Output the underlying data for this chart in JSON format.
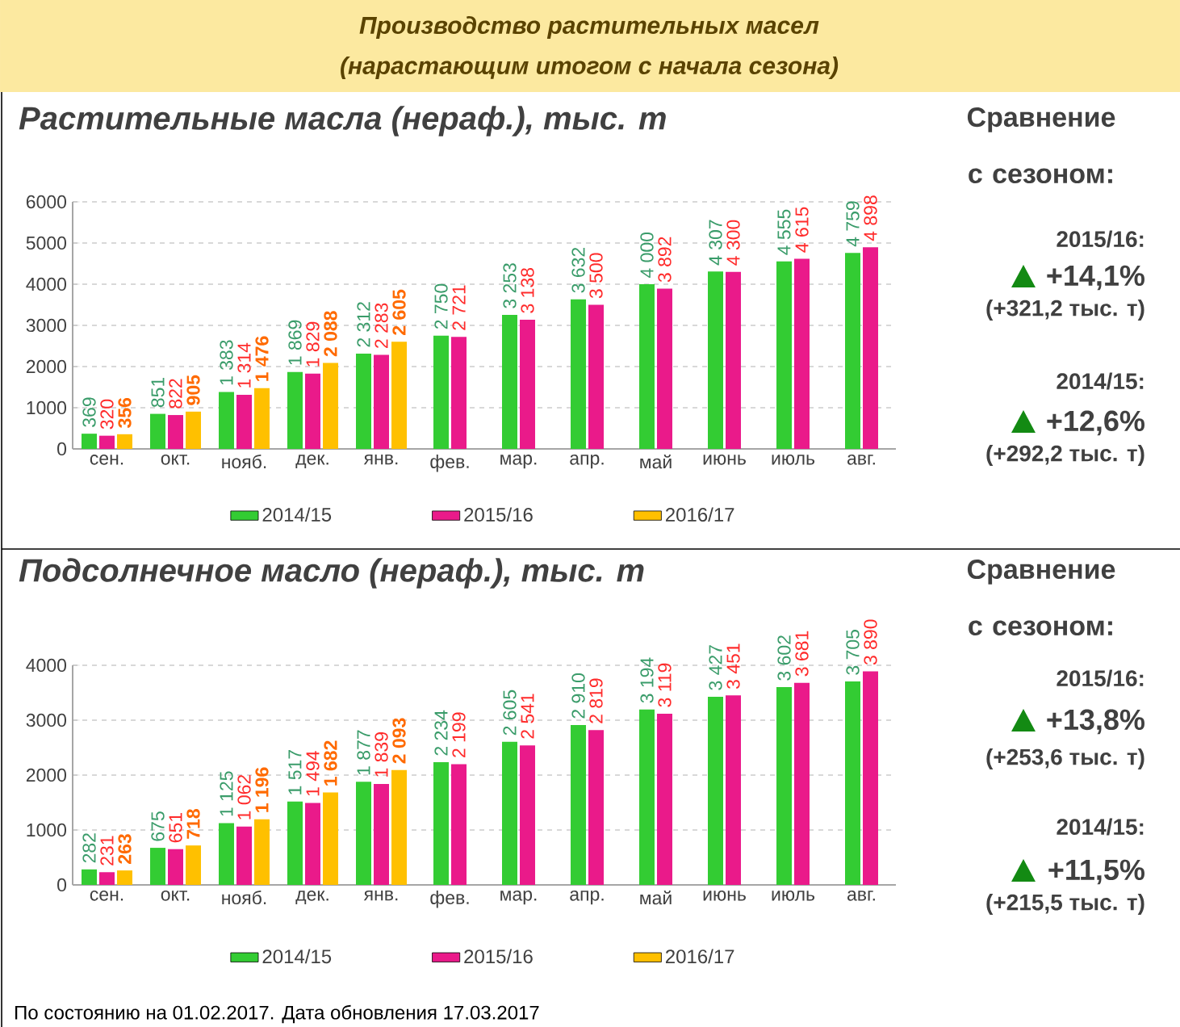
{
  "chart_data": [
    {
      "type": "bar",
      "title": "Растительные масла (нераф.), тыс. т",
      "categories": [
        "сен.",
        "окт.",
        "нояб.",
        "дек.",
        "янв.",
        "фев.",
        "мар.",
        "апр.",
        "май",
        "июнь",
        "июль",
        "авг."
      ],
      "series": [
        {
          "name": "2014/15",
          "color": "#33cc33",
          "values": [
            369,
            851,
            1383,
            1869,
            2312,
            2750,
            3253,
            3632,
            4000,
            4307,
            4555,
            4759
          ],
          "value_labels": [
            "369",
            "851",
            "1 383",
            "1 869",
            "2 312",
            "2 750",
            "3 253",
            "3 632",
            "4 000",
            "4 307",
            "4 555",
            "4 759"
          ]
        },
        {
          "name": "2015/16",
          "color": "#ea1a8a",
          "values": [
            320,
            822,
            1314,
            1829,
            2283,
            2721,
            3138,
            3500,
            3892,
            4300,
            4615,
            4898
          ],
          "value_labels": [
            "320",
            "822",
            "1 314",
            "1 829",
            "2 283",
            "2 721",
            "3 138",
            "3 500",
            "3 892",
            "4 300",
            "4 615",
            "4 898"
          ]
        },
        {
          "name": "2016/17",
          "color": "#ffc000",
          "values": [
            356,
            905,
            1476,
            2088,
            2605,
            null,
            null,
            null,
            null,
            null,
            null,
            null
          ],
          "value_labels": [
            "356",
            "905",
            "1 476",
            "2 088",
            "2 605",
            null,
            null,
            null,
            null,
            null,
            null,
            null
          ]
        }
      ],
      "ylim": [
        0,
        6000
      ],
      "yticks": [
        0,
        1000,
        2000,
        3000,
        4000,
        5000,
        6000
      ],
      "grid": "y",
      "legend": "bottom",
      "annotations": [
        "Производство растительных масел",
        "(нарастающим итогом с начала сезона)",
        "Сравнение с сезоном:",
        "2015/16:",
        "+14,1%",
        "(+321,2 тыс. т)",
        "2014/15:",
        "+12,6%",
        "(+292,2 тыс. т)"
      ]
    },
    {
      "type": "bar",
      "title": "Подсолнечное масло (нераф.), тыс. т",
      "categories": [
        "сен.",
        "окт.",
        "нояб.",
        "дек.",
        "янв.",
        "фев.",
        "мар.",
        "апр.",
        "май",
        "июнь",
        "июль",
        "авг."
      ],
      "series": [
        {
          "name": "2014/15",
          "color": "#33cc33",
          "values": [
            282,
            675,
            1125,
            1517,
            1877,
            2234,
            2605,
            2910,
            3194,
            3427,
            3602,
            3705
          ],
          "value_labels": [
            "282",
            "675",
            "1 125",
            "1 517",
            "1 877",
            "2 234",
            "2 605",
            "2 910",
            "3 194",
            "3 427",
            "3 602",
            "3 705"
          ]
        },
        {
          "name": "2015/16",
          "color": "#ea1a8a",
          "values": [
            231,
            651,
            1062,
            1494,
            1839,
            2199,
            2541,
            2819,
            3119,
            3451,
            3681,
            3890
          ],
          "value_labels": [
            "231",
            "651",
            "1 062",
            "1 494",
            "1 839",
            "2 199",
            "2 541",
            "2 819",
            "3 119",
            "3 451",
            "3 681",
            "3 890"
          ]
        },
        {
          "name": "2016/17",
          "color": "#ffc000",
          "values": [
            263,
            718,
            1196,
            1682,
            2093,
            null,
            null,
            null,
            null,
            null,
            null,
            null
          ],
          "value_labels": [
            "263",
            "718",
            "1 196",
            "1 682",
            "2 093",
            null,
            null,
            null,
            null,
            null,
            null,
            null
          ]
        }
      ],
      "ylim": [
        0,
        4000
      ],
      "yticks": [
        0,
        1000,
        2000,
        3000,
        4000
      ],
      "grid": "y",
      "legend": "bottom",
      "annotations": [
        "Сравнение с сезоном:",
        "2015/16:",
        "+13,8%",
        "(+253,6 тыс. т)",
        "2014/15:",
        "+11,5%",
        "(+215,5 тыс. т)",
        "По состоянию на 01.02.2017. Дата обновления 17.03.2017"
      ]
    }
  ]
}
